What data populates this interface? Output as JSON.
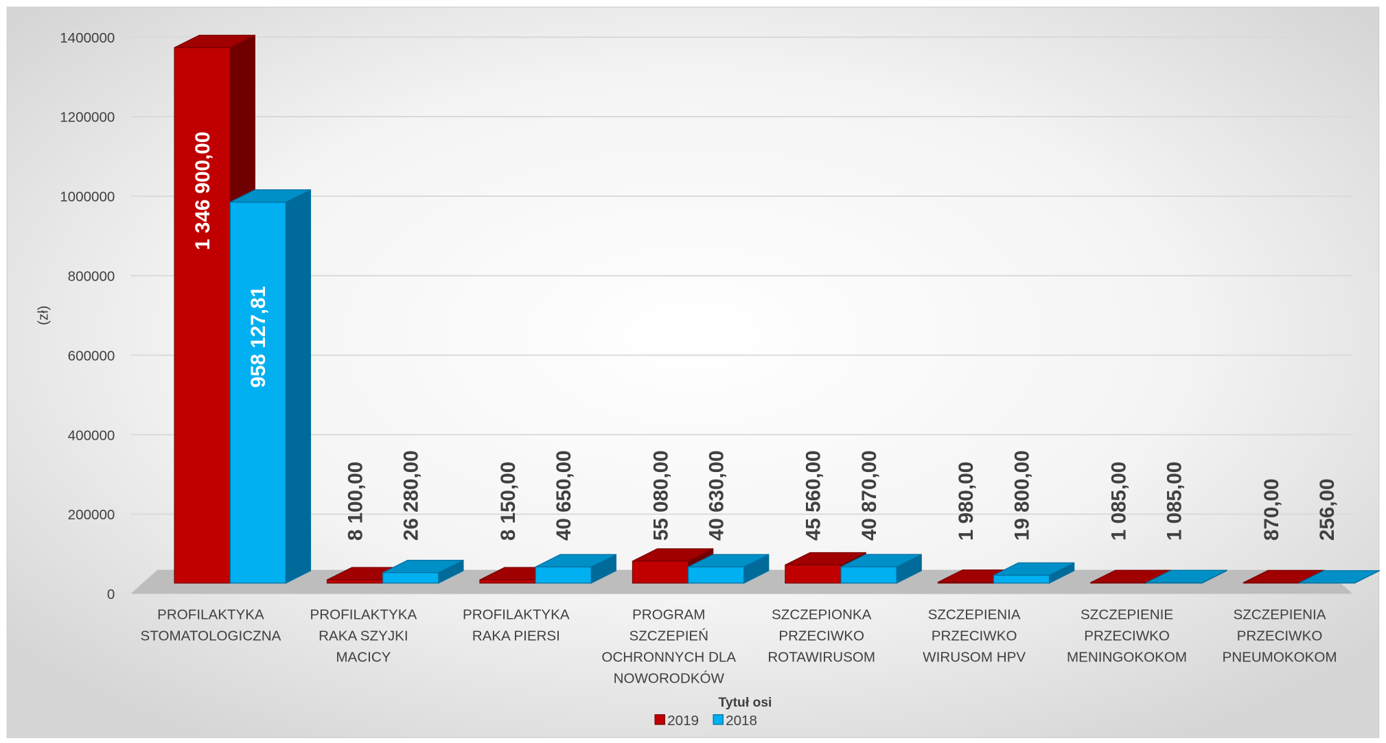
{
  "chart_data": {
    "type": "bar3d",
    "y_label": "(zł)",
    "x_label": "Tytuł osi",
    "categories": [
      [
        "PROFILAKTYKA",
        "STOMATOLOGICZNA"
      ],
      [
        "PROFILAKTYKA",
        "RAKA SZYJKI",
        "MACICY"
      ],
      [
        "PROFILAKTYKA",
        "RAKA PIERSI"
      ],
      [
        "PROGRAM",
        "SZCZEPIEŃ",
        "OCHRONNYCH DLA",
        "NOWORODKÓW"
      ],
      [
        "SZCZEPIONKA",
        "PRZECIWKO",
        "ROTAWIRUSOM"
      ],
      [
        "SZCZEPIENIA",
        "PRZECIWKO",
        "WIRUSOM HPV"
      ],
      [
        "SZCZEPIENIE",
        "PRZECIWKO",
        "MENINGOKOKOM"
      ],
      [
        "SZCZEPIENIA",
        "PRZECIWKO",
        "PNEUMOKOKOM"
      ]
    ],
    "series": [
      {
        "name": "2019",
        "color": "#c00000",
        "values": [
          1346900,
          8100,
          8150,
          55080,
          45560,
          1980,
          1085,
          870
        ],
        "value_labels": [
          "1 346 900,00",
          "8 100,00",
          "8 150,00",
          "55 080,00",
          "45 560,00",
          "1 980,00",
          "1 085,00",
          "870,00"
        ]
      },
      {
        "name": "2018",
        "color": "#00b0f0",
        "values": [
          958127.81,
          26280,
          40650,
          40630,
          40870,
          19800,
          1085,
          256
        ],
        "value_labels": [
          "958 127,81",
          "26 280,00",
          "40 650,00",
          "40 630,00",
          "40 870,00",
          "19 800,00",
          "1 085,00",
          "256,00"
        ]
      }
    ],
    "ylim": [
      0,
      1400000
    ],
    "yticks": [
      0,
      200000,
      400000,
      600000,
      800000,
      1000000,
      1200000,
      1400000
    ],
    "grid": true,
    "legend": "bottom"
  }
}
